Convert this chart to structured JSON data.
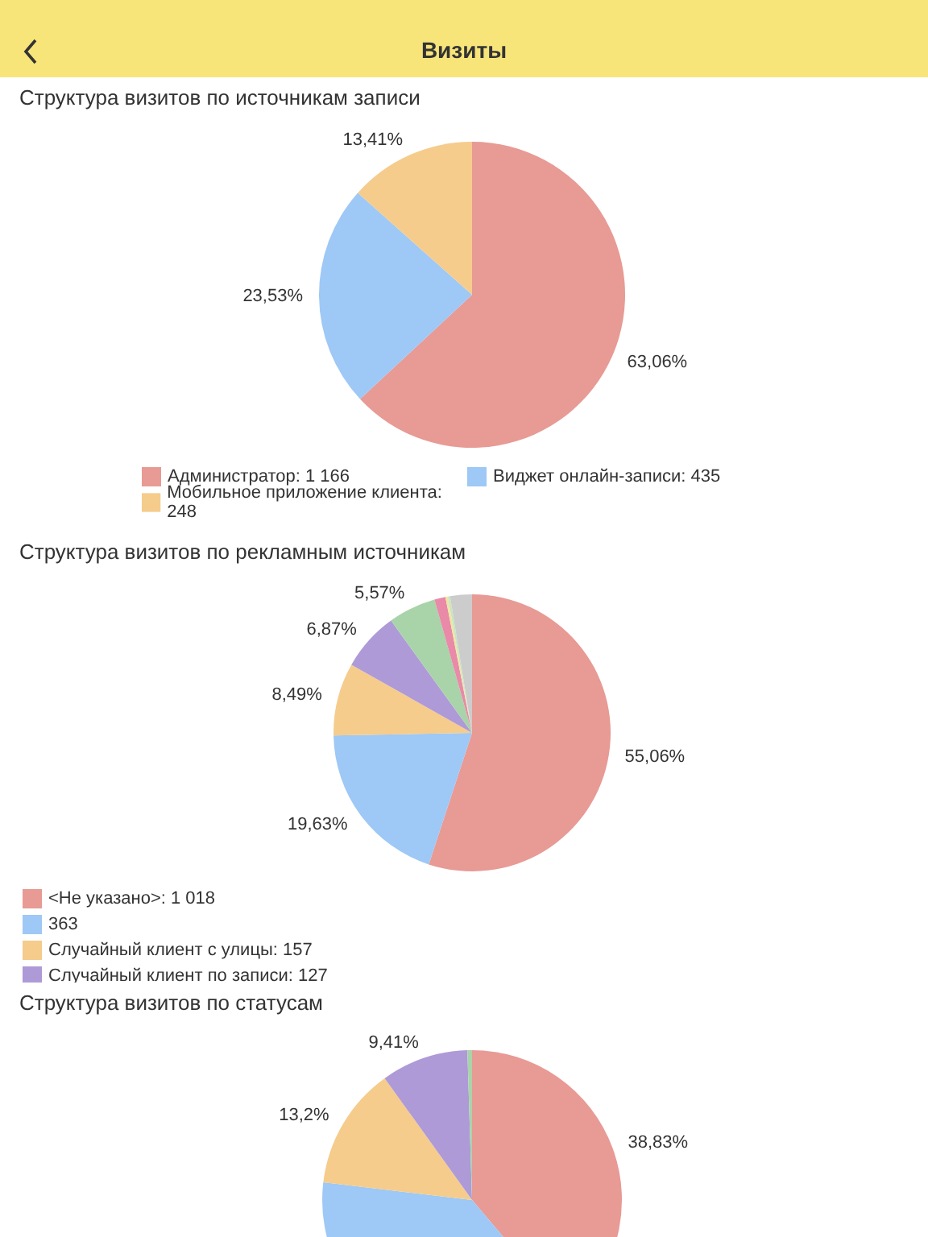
{
  "chart_data": [
    {
      "type": "pie",
      "title": "Структура визитов по источникам записи",
      "annotations": [
        "Визиты"
      ],
      "categories": [
        "Администратор: 1 166",
        "Виджет онлайн-записи: 435",
        "Мобильное приложение клиента: 248"
      ],
      "values": [
        63.06,
        23.53,
        13.41
      ],
      "colors": [
        "#e89a94",
        "#9ec8f5",
        "#f5cc8c"
      ],
      "value_labels": [
        "63,06%",
        "23,53%",
        "13,41%"
      ],
      "legend": "bottom"
    },
    {
      "type": "pie",
      "title": "Структура визитов по рекламным источникам",
      "categories": [
        "<Не указано>: 1 018",
        "363",
        "Случайный клиент с улицы: 157",
        "Случайный клиент по записи: 127",
        null,
        null,
        null,
        null,
        null
      ],
      "values": [
        55.06,
        19.63,
        8.49,
        6.87,
        5.57,
        1.3,
        0.27,
        0.27,
        2.54
      ],
      "colors": [
        "#e89a94",
        "#9ec8f5",
        "#f5cc8c",
        "#ae9ad6",
        "#a9d3a9",
        "#e88aa8",
        "#f0e6a0",
        "#c8e6c0",
        "#cccccc"
      ],
      "value_labels": [
        "55,06%",
        "19,63%",
        "8,49%",
        "6,87%",
        "5,57%",
        null,
        null,
        null,
        null
      ],
      "legend": "bottom"
    },
    {
      "type": "pie",
      "title": "Структура визитов по статусам",
      "values": [
        38.83,
        38.06,
        13.2,
        9.41,
        0.5
      ],
      "colors": [
        "#e89a94",
        "#9ec8f5",
        "#f5cc8c",
        "#ae9ad6",
        "#a9d3a9"
      ],
      "value_labels": [
        "38,83%",
        null,
        "13,2%",
        "9,41%",
        null
      ]
    }
  ]
}
